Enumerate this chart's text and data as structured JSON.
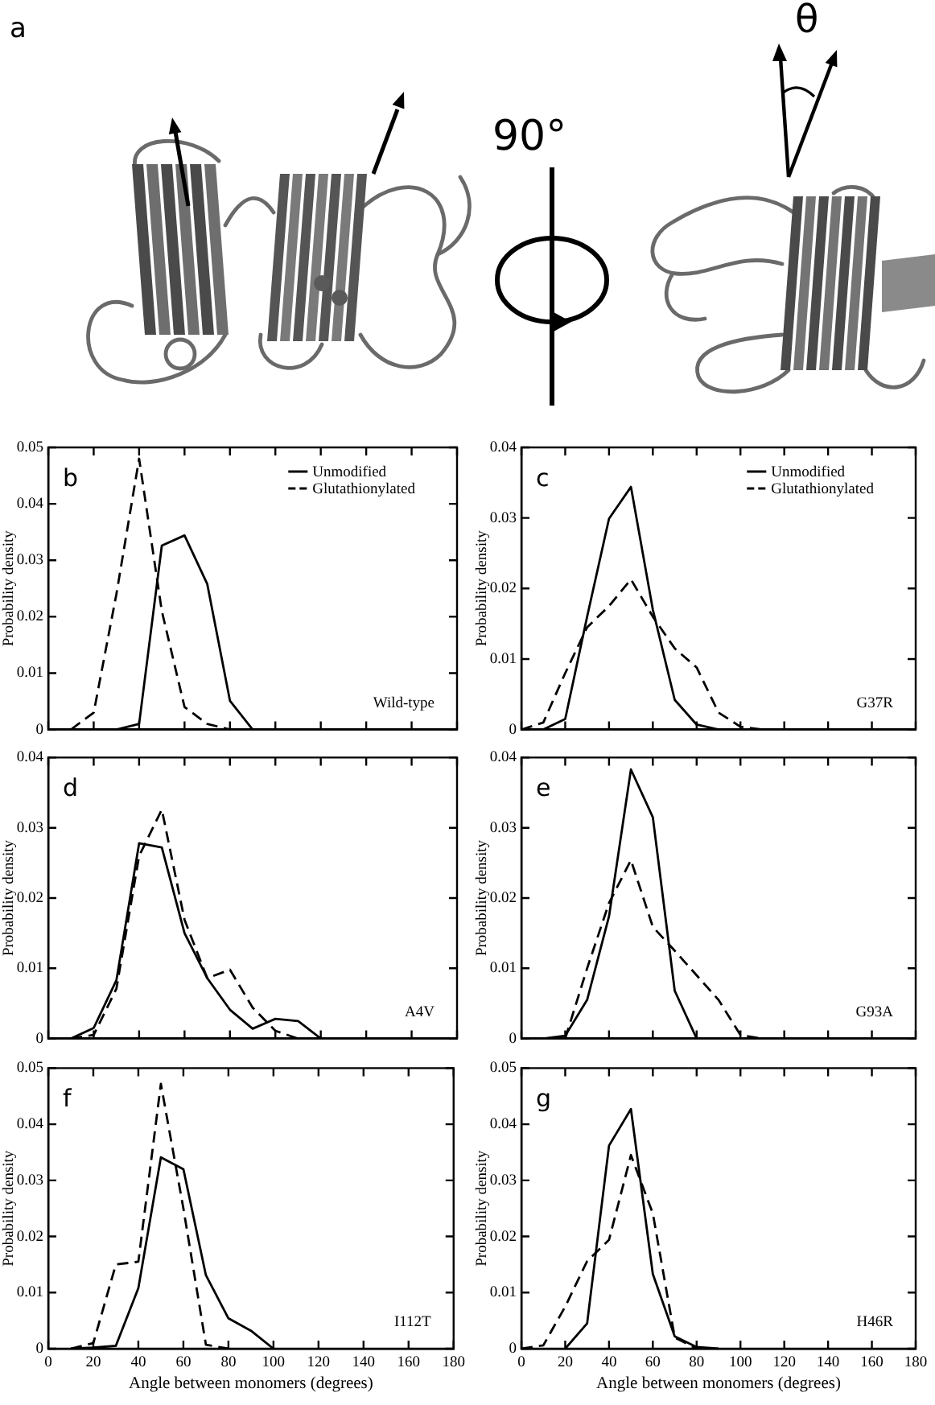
{
  "chart_data": [
    {
      "type": "other",
      "annotations": [
        "a",
        "90°",
        "θ"
      ]
    },
    {
      "type": "line",
      "title": "Wild-type",
      "annotations": [
        "b"
      ],
      "ylabel": "Probability density",
      "xlim": [
        0,
        180
      ],
      "xticks": [
        0,
        20,
        40,
        60,
        80,
        100,
        120,
        140,
        160,
        180
      ],
      "ylim": [
        0,
        0.05
      ],
      "yticks": [
        0,
        0.01,
        0.02,
        0.03,
        0.04,
        0.05
      ],
      "tick_labels": "y",
      "legend": "top right",
      "series": [
        {
          "name": "Unmodified",
          "color": "#000000",
          "line_style": "solid",
          "x": [
            30,
            40,
            50,
            60,
            70,
            80,
            90
          ],
          "values": [
            0,
            0.001,
            0.0326,
            0.0344,
            0.0258,
            0.0051,
            0
          ]
        },
        {
          "name": "Glutathionylated",
          "color": "#000000",
          "line_style": "dashed",
          "x": [
            10,
            20,
            30,
            40,
            50,
            60,
            70,
            80
          ],
          "values": [
            0,
            0.003,
            0.024,
            0.048,
            0.021,
            0.004,
            0.001,
            0
          ]
        }
      ]
    },
    {
      "type": "line",
      "title": "G37R",
      "annotations": [
        "c"
      ],
      "ylabel": "Probability density",
      "xlim": [
        0,
        180
      ],
      "xticks": [
        0,
        20,
        40,
        60,
        80,
        100,
        120,
        140,
        160,
        180
      ],
      "ylim": [
        0,
        0.04
      ],
      "yticks": [
        0,
        0.01,
        0.02,
        0.03,
        0.04
      ],
      "tick_labels": "y",
      "legend": "top right",
      "series": [
        {
          "name": "Unmodified",
          "color": "#000000",
          "line_style": "solid",
          "x": [
            0,
            10,
            20,
            30,
            40,
            50,
            60,
            70,
            80,
            90
          ],
          "values": [
            0,
            0,
            0.0015,
            0.016,
            0.0299,
            0.0344,
            0.017,
            0.0042,
            0.0007,
            0
          ]
        },
        {
          "name": "Glutathionylated",
          "color": "#000000",
          "line_style": "dashed",
          "x": [
            0,
            10,
            20,
            30,
            40,
            50,
            60,
            70,
            80,
            90,
            100,
            110
          ],
          "values": [
            0,
            0.001,
            0.008,
            0.0145,
            0.0175,
            0.0213,
            0.016,
            0.0115,
            0.0088,
            0.0024,
            0.0004,
            0
          ]
        }
      ]
    },
    {
      "type": "line",
      "title": "A4V",
      "annotations": [
        "d"
      ],
      "ylabel": "Probability density",
      "xlim": [
        0,
        180
      ],
      "xticks": [
        0,
        20,
        40,
        60,
        80,
        100,
        120,
        140,
        160,
        180
      ],
      "ylim": [
        0,
        0.04
      ],
      "yticks": [
        0,
        0.01,
        0.02,
        0.03,
        0.04
      ],
      "tick_labels": "y",
      "series": [
        {
          "color": "#000000",
          "line_style": "solid",
          "x": [
            10,
            20,
            30,
            40,
            50,
            60,
            70,
            80,
            90,
            100,
            110,
            120
          ],
          "values": [
            0,
            0.0015,
            0.0083,
            0.0278,
            0.0272,
            0.015,
            0.0086,
            0.0041,
            0.0014,
            0.0028,
            0.0025,
            0
          ]
        },
        {
          "color": "#000000",
          "line_style": "dashed",
          "x": [
            10,
            20,
            30,
            40,
            50,
            60,
            70,
            80,
            90,
            100,
            110
          ],
          "values": [
            0,
            0.0005,
            0.0071,
            0.026,
            0.0326,
            0.0169,
            0.0086,
            0.0098,
            0.0044,
            0.0011,
            0
          ]
        }
      ]
    },
    {
      "type": "line",
      "title": "G93A",
      "annotations": [
        "e"
      ],
      "ylabel": "Probability density",
      "xlim": [
        0,
        180
      ],
      "xticks": [
        0,
        20,
        40,
        60,
        80,
        100,
        120,
        140,
        160,
        180
      ],
      "ylim": [
        0,
        0.04
      ],
      "yticks": [
        0,
        0.01,
        0.02,
        0.03,
        0.04
      ],
      "tick_labels": "y",
      "series": [
        {
          "color": "#000000",
          "line_style": "solid",
          "x": [
            0,
            10,
            20,
            30,
            40,
            50,
            60,
            70,
            80
          ],
          "values": [
            0,
            0,
            0.0004,
            0.0055,
            0.0174,
            0.0383,
            0.0315,
            0.0068,
            0
          ]
        },
        {
          "color": "#000000",
          "line_style": "dashed",
          "x": [
            20,
            30,
            40,
            50,
            60,
            70,
            80,
            90,
            100,
            110
          ],
          "values": [
            0,
            0.01,
            0.0193,
            0.0254,
            0.0159,
            0.0125,
            0.009,
            0.0055,
            0.0005,
            0
          ]
        }
      ]
    },
    {
      "type": "line",
      "title": "I112T",
      "annotations": [
        "f"
      ],
      "xlabel": "Angle between monomers (degrees)",
      "ylabel": "Probability density",
      "xlim": [
        0,
        180
      ],
      "xticks": [
        0,
        20,
        40,
        60,
        80,
        100,
        120,
        140,
        160,
        180
      ],
      "ylim": [
        0,
        0.05
      ],
      "yticks": [
        0,
        0.01,
        0.02,
        0.03,
        0.04,
        0.05
      ],
      "series": [
        {
          "color": "#000000",
          "line_style": "solid",
          "x": [
            10,
            20,
            30,
            40,
            50,
            60,
            70,
            80,
            90,
            100
          ],
          "values": [
            0,
            0.0002,
            0.0005,
            0.0108,
            0.0341,
            0.032,
            0.0131,
            0.0054,
            0.0032,
            0
          ]
        },
        {
          "color": "#000000",
          "line_style": "dashed",
          "x": [
            10,
            20,
            30,
            40,
            50,
            60,
            70,
            80
          ],
          "values": [
            0,
            0.001,
            0.015,
            0.0155,
            0.0472,
            0.025,
            0.0007,
            0
          ]
        }
      ]
    },
    {
      "type": "line",
      "title": "H46R",
      "annotations": [
        "g"
      ],
      "xlabel": "Angle between monomers (degrees)",
      "ylabel": "Probability density",
      "xlim": [
        0,
        180
      ],
      "xticks": [
        0,
        20,
        40,
        60,
        80,
        100,
        120,
        140,
        160,
        180
      ],
      "ylim": [
        0,
        0.05
      ],
      "yticks": [
        0,
        0.01,
        0.02,
        0.03,
        0.04,
        0.05
      ],
      "series": [
        {
          "color": "#000000",
          "line_style": "solid",
          "x": [
            20,
            30,
            40,
            50,
            60,
            70,
            80,
            90
          ],
          "values": [
            0,
            0.0045,
            0.0362,
            0.0427,
            0.0133,
            0.0022,
            0.0003,
            0
          ]
        },
        {
          "color": "#000000",
          "line_style": "dashed",
          "x": [
            0,
            10,
            20,
            30,
            40,
            50,
            60,
            70,
            80
          ],
          "values": [
            0,
            0.0006,
            0.0075,
            0.0156,
            0.0194,
            0.0345,
            0.0241,
            0.002,
            0
          ]
        }
      ]
    }
  ]
}
